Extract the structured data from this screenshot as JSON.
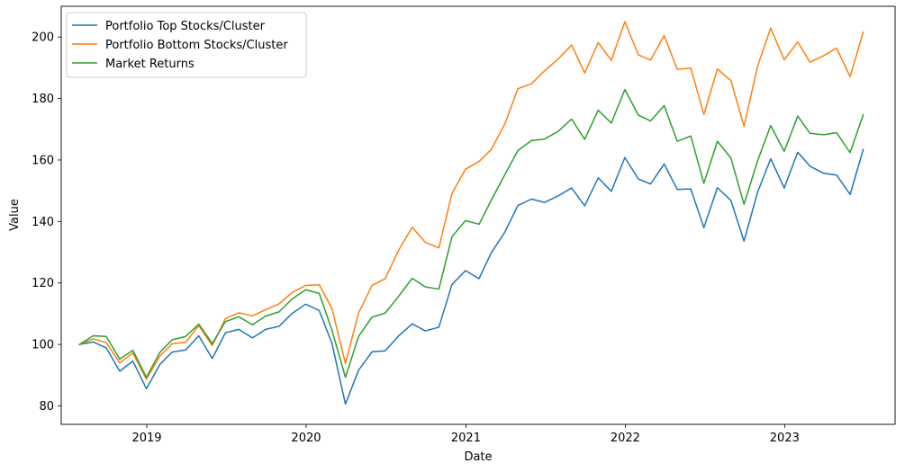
{
  "chart_data": {
    "type": "line",
    "xlabel": "Date",
    "ylabel": "Value",
    "grid": false,
    "legend_position": "top-left",
    "x_ticks": [
      "2019-01-01",
      "2020-01-01",
      "2021-01-01",
      "2022-01-01",
      "2023-01-01"
    ],
    "x_tick_labels": [
      "2019",
      "2020",
      "2021",
      "2022",
      "2023"
    ],
    "y_ticks": [
      80,
      100,
      120,
      140,
      160,
      180,
      200
    ],
    "y_tick_labels": [
      "80",
      "100",
      "120",
      "140",
      "160",
      "180",
      "200"
    ],
    "xlim": [
      "2018-06-19",
      "2023-09-11"
    ],
    "ylim": [
      74,
      210
    ],
    "x": [
      "2018-07-31",
      "2018-08-31",
      "2018-09-30",
      "2018-10-31",
      "2018-11-30",
      "2018-12-31",
      "2019-01-31",
      "2019-02-28",
      "2019-03-31",
      "2019-04-30",
      "2019-05-31",
      "2019-06-30",
      "2019-07-31",
      "2019-08-31",
      "2019-09-30",
      "2019-10-31",
      "2019-11-30",
      "2019-12-31",
      "2020-01-31",
      "2020-02-29",
      "2020-03-31",
      "2020-04-30",
      "2020-05-31",
      "2020-06-30",
      "2020-07-31",
      "2020-08-31",
      "2020-09-30",
      "2020-10-31",
      "2020-11-30",
      "2020-12-31",
      "2021-01-31",
      "2021-02-28",
      "2021-03-31",
      "2021-04-30",
      "2021-05-31",
      "2021-06-30",
      "2021-07-31",
      "2021-08-31",
      "2021-09-30",
      "2021-10-31",
      "2021-11-30",
      "2021-12-31",
      "2022-01-31",
      "2022-02-28",
      "2022-03-31",
      "2022-04-30",
      "2022-05-31",
      "2022-06-30",
      "2022-07-31",
      "2022-08-31",
      "2022-09-30",
      "2022-10-31",
      "2022-11-30",
      "2022-12-31",
      "2023-01-31",
      "2023-02-28",
      "2023-03-31",
      "2023-04-30",
      "2023-05-31",
      "2023-06-30"
    ],
    "series": [
      {
        "name": "Portfolio Top Stocks/Cluster",
        "color": "#1f77b4",
        "values": [
          100,
          100.8,
          98.9,
          91.3,
          94.6,
          85.6,
          93.5,
          97.5,
          98.2,
          102.8,
          95.4,
          103.8,
          104.9,
          102.1,
          104.9,
          105.9,
          110.1,
          113.1,
          111.0,
          100.4,
          80.6,
          91.6,
          97.6,
          97.9,
          102.8,
          106.7,
          104.4,
          105.6,
          119.5,
          124.0,
          121.4,
          129.8,
          136.5,
          145.2,
          147.3,
          146.2,
          148.3,
          150.9,
          145.1,
          154.2,
          149.8,
          160.8,
          153.8,
          152.2,
          158.7,
          150.4,
          150.6,
          138.0,
          151.0,
          146.8,
          133.6,
          149.5,
          160.4,
          150.9,
          162.5,
          158.0,
          155.7,
          155.1,
          148.8,
          163.4
        ]
      },
      {
        "name": "Portfolio Bottom Stocks/Cluster",
        "color": "#ff7f0e",
        "values": [
          100,
          101.8,
          100.6,
          94.0,
          97.2,
          88.7,
          96.2,
          100.2,
          100.7,
          106.1,
          99.6,
          108.4,
          110.3,
          109.3,
          111.3,
          113.2,
          116.9,
          119.2,
          119.4,
          111.7,
          93.8,
          110.2,
          119.2,
          121.4,
          130.7,
          138.1,
          133.2,
          131.4,
          149.1,
          157.0,
          159.5,
          163.4,
          171.7,
          183.2,
          184.8,
          189.0,
          192.8,
          197.4,
          188.3,
          198.2,
          192.4,
          205.0,
          194.2,
          192.5,
          200.5,
          189.5,
          189.9,
          174.8,
          189.6,
          185.8,
          171.0,
          190.5,
          202.9,
          192.6,
          198.4,
          191.8,
          193.9,
          196.4,
          187.1,
          201.6
        ]
      },
      {
        "name": "Market Returns",
        "color": "#2ca02c",
        "values": [
          100,
          102.8,
          102.6,
          95.2,
          98.1,
          89.3,
          97.4,
          101.5,
          102.6,
          106.6,
          100.3,
          107.4,
          109.0,
          106.4,
          109.2,
          110.6,
          114.8,
          117.8,
          116.6,
          104.7,
          89.3,
          102.6,
          108.9,
          110.2,
          115.7,
          121.5,
          118.7,
          118.0,
          135.0,
          140.3,
          139.1,
          146.9,
          155.2,
          163.1,
          166.3,
          166.8,
          169.3,
          173.3,
          166.7,
          176.2,
          172.0,
          182.9,
          174.6,
          172.7,
          177.7,
          166.1,
          167.8,
          152.4,
          166.1,
          160.6,
          145.6,
          159.7,
          171.2,
          162.8,
          174.3,
          168.7,
          168.2,
          168.9,
          162.4,
          174.7
        ]
      }
    ]
  }
}
